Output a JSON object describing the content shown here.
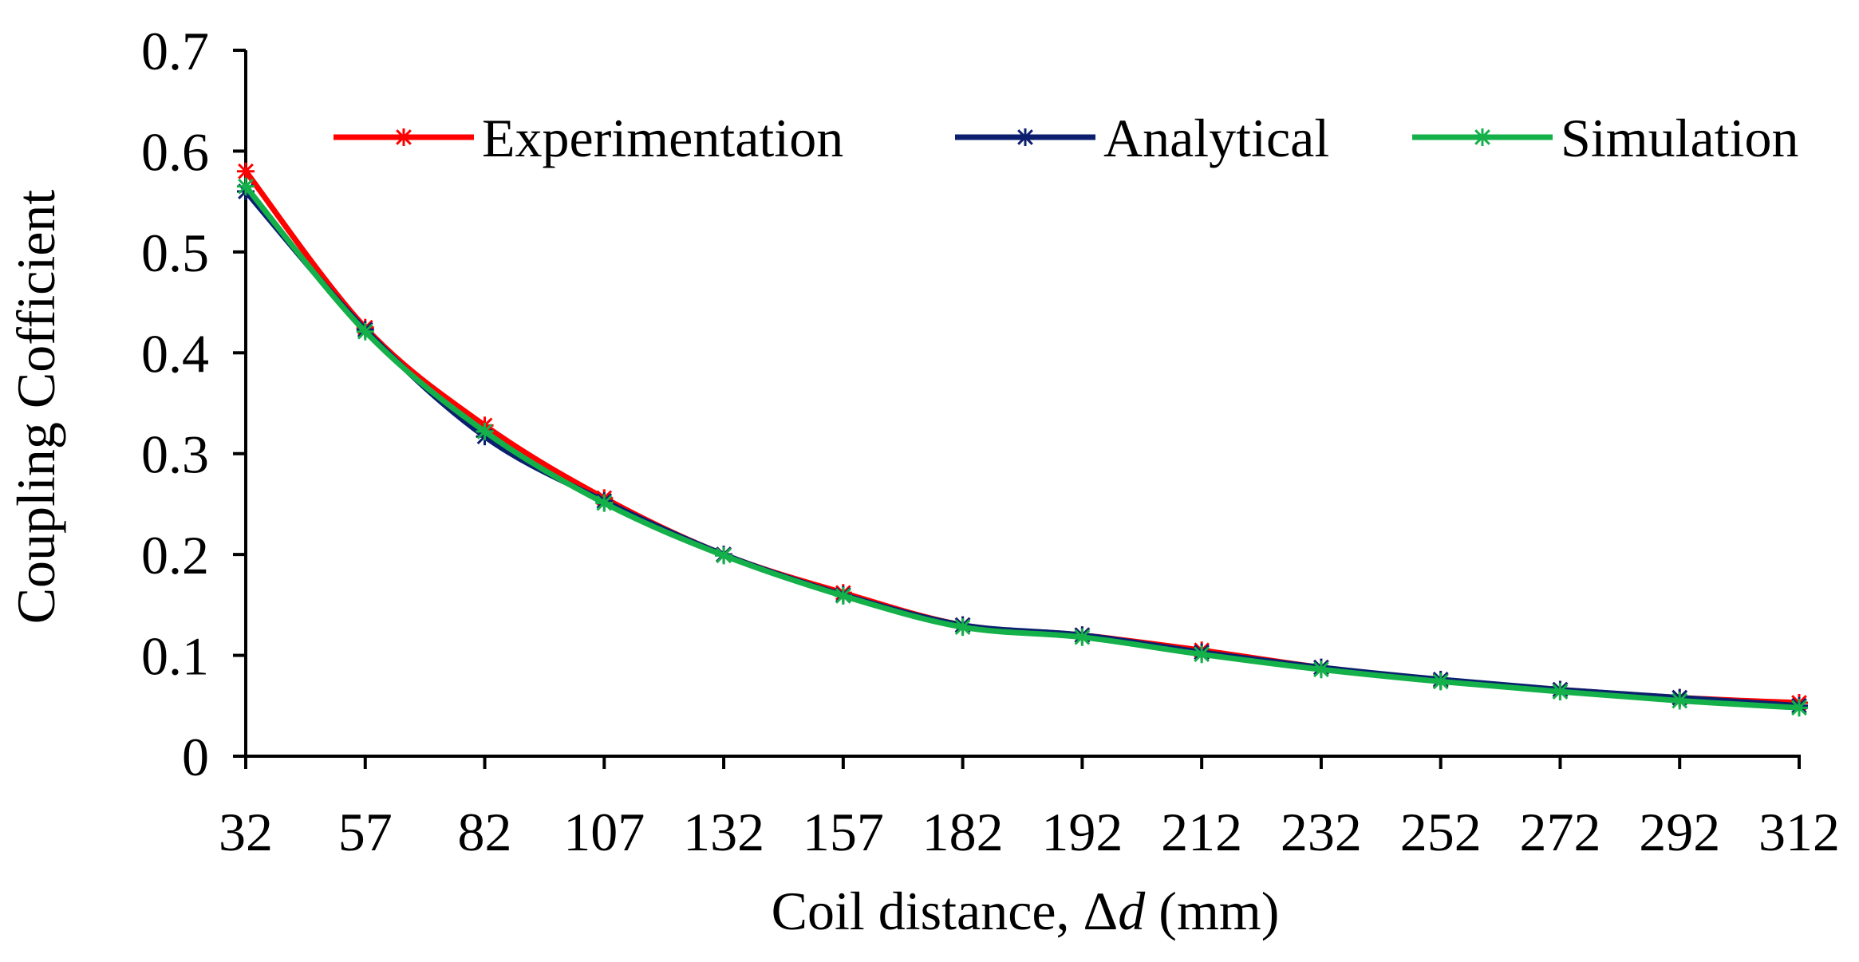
{
  "chart_data": {
    "type": "line",
    "title": "",
    "xlabel_prefix": "Coil distance, Δ",
    "xlabel_var": "d",
    "xlabel_suffix": " (mm)",
    "ylabel": "Coupling Cofficient",
    "categories": [
      "32",
      "57",
      "82",
      "107",
      "132",
      "157",
      "182",
      "192",
      "212",
      "232",
      "252",
      "272",
      "292",
      "312"
    ],
    "ylim": [
      0,
      0.7
    ],
    "yticks": [
      0,
      0.1,
      0.2,
      0.3,
      0.4,
      0.5,
      0.6,
      0.7
    ],
    "ytick_labels": [
      "0",
      "0.1",
      "0.2",
      "0.3",
      "0.4",
      "0.5",
      "0.6",
      "0.7"
    ],
    "legend_position": "top-right",
    "grid": false,
    "series": [
      {
        "name": "Experimentation",
        "color": "#ff0000",
        "values": [
          0.58,
          0.425,
          0.328,
          0.256,
          0.2,
          0.162,
          0.13,
          0.12,
          0.105,
          0.088,
          0.075,
          0.066,
          0.058,
          0.053
        ]
      },
      {
        "name": "Analytical",
        "color": "#0b1f6e",
        "values": [
          0.56,
          0.423,
          0.317,
          0.253,
          0.2,
          0.16,
          0.13,
          0.12,
          0.103,
          0.088,
          0.076,
          0.066,
          0.058,
          0.05
        ]
      },
      {
        "name": "Simulation",
        "color": "#14b04a",
        "values": [
          0.565,
          0.421,
          0.322,
          0.251,
          0.199,
          0.159,
          0.128,
          0.118,
          0.101,
          0.086,
          0.074,
          0.064,
          0.055,
          0.048
        ]
      }
    ]
  }
}
